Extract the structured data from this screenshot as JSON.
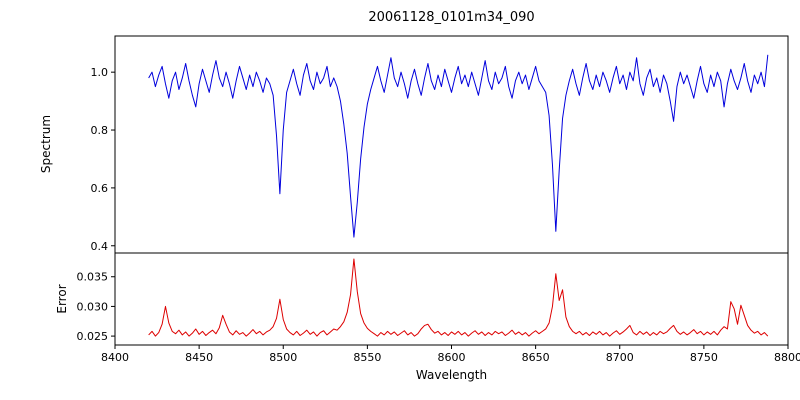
{
  "chart_data": {
    "type": "line",
    "title": "20061128_0101m34_090",
    "xlabel": "Wavelength",
    "x_range": [
      8400,
      8800
    ],
    "x_ticks": [
      8400,
      8450,
      8500,
      8550,
      8600,
      8650,
      8700,
      8750,
      8800
    ],
    "x_start": 8420,
    "x_step": 2,
    "grid": false,
    "legend": "none",
    "panels": [
      {
        "name": "spectrum",
        "ylabel": "Spectrum",
        "color": "#0000dd",
        "ylim": [
          0.375,
          1.125
        ],
        "y_ticks": [
          1.0,
          0.8,
          0.6,
          0.4
        ],
        "y_tick_labels": [
          "1.0",
          "0.8",
          "0.6",
          "0.4"
        ],
        "features": "absorption lines near 8498, 8542, 8662 with minima 0.58, 0.43, 0.45; continuum near 1.0",
        "values": [
          0.98,
          1.0,
          0.95,
          0.99,
          1.02,
          0.96,
          0.91,
          0.97,
          1.0,
          0.94,
          0.98,
          1.03,
          0.97,
          0.92,
          0.88,
          0.96,
          1.01,
          0.97,
          0.93,
          0.99,
          1.04,
          0.98,
          0.95,
          1.0,
          0.96,
          0.91,
          0.97,
          1.02,
          0.98,
          0.94,
          0.99,
          0.95,
          1.0,
          0.97,
          0.93,
          0.98,
          0.96,
          0.92,
          0.78,
          0.58,
          0.8,
          0.93,
          0.97,
          1.01,
          0.96,
          0.92,
          0.99,
          1.03,
          0.97,
          0.94,
          1.0,
          0.96,
          0.98,
          1.02,
          0.95,
          0.98,
          0.95,
          0.9,
          0.82,
          0.72,
          0.57,
          0.43,
          0.55,
          0.7,
          0.81,
          0.89,
          0.94,
          0.98,
          1.02,
          0.97,
          0.93,
          0.99,
          1.05,
          0.98,
          0.95,
          1.0,
          0.96,
          0.91,
          0.97,
          1.01,
          0.96,
          0.92,
          0.98,
          1.03,
          0.97,
          0.94,
          0.99,
          0.95,
          1.01,
          0.97,
          0.93,
          0.98,
          1.02,
          0.96,
          0.99,
          0.95,
          1.0,
          0.96,
          0.92,
          0.98,
          1.04,
          0.97,
          0.94,
          1.0,
          0.96,
          0.98,
          1.02,
          0.95,
          0.91,
          0.97,
          1.0,
          0.96,
          0.99,
          0.94,
          0.98,
          1.02,
          0.97,
          0.95,
          0.93,
          0.85,
          0.68,
          0.45,
          0.66,
          0.84,
          0.92,
          0.97,
          1.01,
          0.96,
          0.92,
          0.98,
          1.03,
          0.97,
          0.94,
          0.99,
          0.95,
          1.0,
          0.97,
          0.93,
          0.98,
          1.02,
          0.96,
          0.99,
          0.94,
          1.0,
          0.97,
          1.05,
          0.96,
          0.92,
          0.98,
          1.01,
          0.95,
          0.98,
          0.93,
          0.99,
          0.96,
          0.9,
          0.83,
          0.95,
          1.0,
          0.96,
          0.99,
          0.95,
          0.91,
          0.97,
          1.02,
          0.96,
          0.93,
          0.99,
          0.95,
          1.0,
          0.97,
          0.88,
          0.96,
          1.01,
          0.97,
          0.94,
          0.98,
          1.03,
          0.97,
          0.93,
          0.99,
          0.96,
          1.0,
          0.95,
          1.06
        ]
      },
      {
        "name": "error",
        "ylabel": "Error",
        "color": "#dd0000",
        "ylim": [
          0.0235,
          0.039
        ],
        "y_ticks": [
          0.035,
          0.03,
          0.025
        ],
        "y_tick_labels": [
          "0.035",
          "0.030",
          "0.025"
        ],
        "features": "baseline near 0.0255 with spikes at 8430 (0.030), 8498 (0.031), 8542 (0.038), 8662 (0.0355), 8766 (0.031)",
        "values": [
          0.0252,
          0.0258,
          0.025,
          0.0256,
          0.027,
          0.03,
          0.0272,
          0.0258,
          0.0254,
          0.026,
          0.0252,
          0.0257,
          0.025,
          0.0255,
          0.0262,
          0.0253,
          0.0258,
          0.0251,
          0.0256,
          0.026,
          0.0254,
          0.0264,
          0.0285,
          0.027,
          0.0257,
          0.0252,
          0.0259,
          0.0253,
          0.0256,
          0.025,
          0.0255,
          0.0261,
          0.0254,
          0.0258,
          0.0252,
          0.0257,
          0.026,
          0.0266,
          0.028,
          0.0312,
          0.0278,
          0.0262,
          0.0256,
          0.0252,
          0.0258,
          0.0251,
          0.0255,
          0.026,
          0.0253,
          0.0257,
          0.025,
          0.0256,
          0.0259,
          0.0252,
          0.0257,
          0.0262,
          0.026,
          0.0266,
          0.0274,
          0.029,
          0.032,
          0.038,
          0.0325,
          0.0288,
          0.0272,
          0.0263,
          0.0258,
          0.0254,
          0.025,
          0.0256,
          0.0252,
          0.0258,
          0.0253,
          0.0257,
          0.0251,
          0.0255,
          0.0259,
          0.0252,
          0.0256,
          0.025,
          0.0254,
          0.0262,
          0.0268,
          0.027,
          0.0261,
          0.0255,
          0.0258,
          0.0252,
          0.0256,
          0.0251,
          0.0257,
          0.0253,
          0.0258,
          0.0252,
          0.0256,
          0.025,
          0.0255,
          0.0259,
          0.0253,
          0.0257,
          0.0251,
          0.0256,
          0.0252,
          0.0258,
          0.0254,
          0.0257,
          0.0251,
          0.0255,
          0.026,
          0.0253,
          0.0257,
          0.0252,
          0.0256,
          0.025,
          0.0255,
          0.0259,
          0.0254,
          0.0258,
          0.0262,
          0.0272,
          0.03,
          0.0355,
          0.031,
          0.0328,
          0.0282,
          0.0266,
          0.0258,
          0.0254,
          0.0258,
          0.0252,
          0.0256,
          0.0251,
          0.0257,
          0.0253,
          0.0258,
          0.0252,
          0.0256,
          0.025,
          0.0255,
          0.0259,
          0.0253,
          0.0257,
          0.0262,
          0.0268,
          0.0256,
          0.0252,
          0.0258,
          0.0253,
          0.0257,
          0.0251,
          0.0256,
          0.0252,
          0.0258,
          0.0254,
          0.0257,
          0.0263,
          0.0268,
          0.0258,
          0.0253,
          0.0257,
          0.0252,
          0.0256,
          0.0261,
          0.0254,
          0.0258,
          0.0252,
          0.0257,
          0.0253,
          0.0258,
          0.0252,
          0.026,
          0.0266,
          0.0262,
          0.0308,
          0.0296,
          0.027,
          0.0302,
          0.0285,
          0.0268,
          0.026,
          0.0255,
          0.0258,
          0.0252,
          0.0256,
          0.025
        ]
      }
    ]
  }
}
